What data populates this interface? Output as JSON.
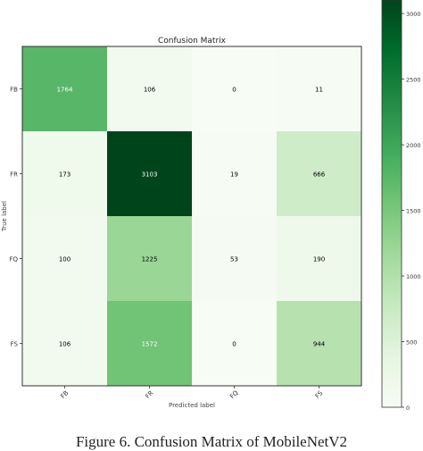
{
  "chart_data": {
    "type": "heatmap",
    "title": "Confusion Matrix",
    "xlabel": "Predicted label",
    "ylabel": "True label",
    "row_labels": [
      "FB",
      "FR",
      "FQ",
      "FS"
    ],
    "col_labels": [
      "FB",
      "FR",
      "FQ",
      "FS"
    ],
    "values": [
      [
        1764,
        106,
        0,
        11
      ],
      [
        173,
        3103,
        19,
        666
      ],
      [
        100,
        1225,
        53,
        190
      ],
      [
        106,
        1572,
        0,
        944
      ]
    ],
    "value_labels": [
      [
        "1764",
        "106",
        "0",
        "11"
      ],
      [
        "173",
        "3103",
        "19",
        "666"
      ],
      [
        "100",
        "1225",
        "53",
        "190"
      ],
      [
        "106",
        "1572",
        "0",
        "944"
      ]
    ],
    "colormap": "Greens",
    "color_range": [
      0,
      3103
    ],
    "colorbar_ticks": [
      0,
      500,
      1000,
      1500,
      2000,
      2500,
      3000
    ],
    "colorbar_tick_labels": [
      "0",
      "500",
      "1000",
      "1500",
      "2000",
      "2500",
      "3000"
    ]
  },
  "caption": "Figure 6. Confusion Matrix of MobileNetV2",
  "colors": {
    "low": "#f7fcf5",
    "high": "#00441b",
    "light_text": "#ffffff",
    "dark_text": "#000000"
  }
}
